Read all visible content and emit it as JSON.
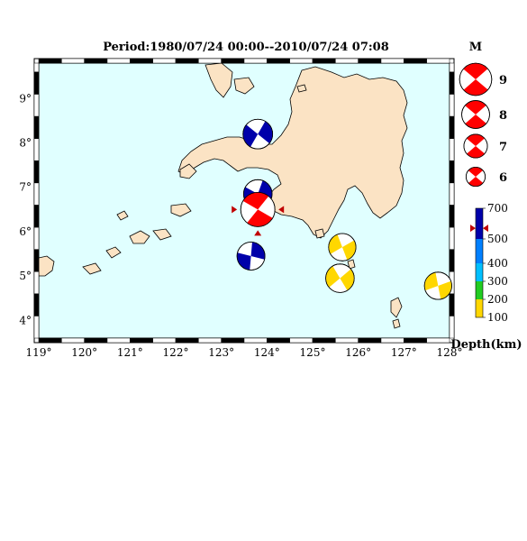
{
  "title": "Period:1980/07/24 00:00--2010/07/24 07:08",
  "x_ticks": [
    "119°",
    "120°",
    "121°",
    "122°",
    "123°",
    "124°",
    "125°",
    "126°",
    "127°",
    "128°"
  ],
  "y_ticks": [
    "4°",
    "5°",
    "6°",
    "7°",
    "8°",
    "9°"
  ],
  "map_extent": {
    "lon": [
      119,
      128
    ],
    "lat": [
      3.6,
      9.8
    ]
  },
  "colors": {
    "sea": "#e0ffff",
    "land": "#fbe3c4",
    "shallow": "#ffd700",
    "intermediate": "#00bfff",
    "deep": "#0000aa",
    "mainshock": "#ff0000"
  },
  "events": [
    {
      "lon": 123.8,
      "lat": 8.2,
      "mag": 6.7,
      "type": "deep"
    },
    {
      "lon": 123.8,
      "lat": 6.85,
      "mag": 6.5,
      "type": "deep"
    },
    {
      "lon": 123.65,
      "lat": 5.45,
      "mag": 6.4,
      "type": "deep"
    },
    {
      "lon": 123.8,
      "lat": 6.5,
      "mag": 7.5,
      "type": "mainshock"
    },
    {
      "lon": 125.65,
      "lat": 5.65,
      "mag": 6.3,
      "type": "shallow"
    },
    {
      "lon": 125.6,
      "lat": 4.95,
      "mag": 6.5,
      "type": "shallow"
    },
    {
      "lon": 127.75,
      "lat": 4.78,
      "mag": 6.3,
      "type": "shallow"
    }
  ],
  "magnitude_legend": {
    "label": "M",
    "items": [
      "9",
      "8",
      "7",
      "6"
    ]
  },
  "depth_legend": {
    "label": "Depth(km)",
    "ticks": [
      "700",
      "500",
      "400",
      "300",
      "200",
      "100"
    ],
    "bands": [
      {
        "from": 0,
        "to": 100,
        "color": "#ffd700"
      },
      {
        "from": 100,
        "to": 200,
        "color": "#ffd700"
      },
      {
        "from": 200,
        "to": 300,
        "color": "#22cc22"
      },
      {
        "from": 300,
        "to": 400,
        "color": "#00bfff"
      },
      {
        "from": 400,
        "to": 500,
        "color": "#0080ff"
      },
      {
        "from": 500,
        "to": 700,
        "color": "#0000aa"
      }
    ],
    "marker_depth": 570
  }
}
